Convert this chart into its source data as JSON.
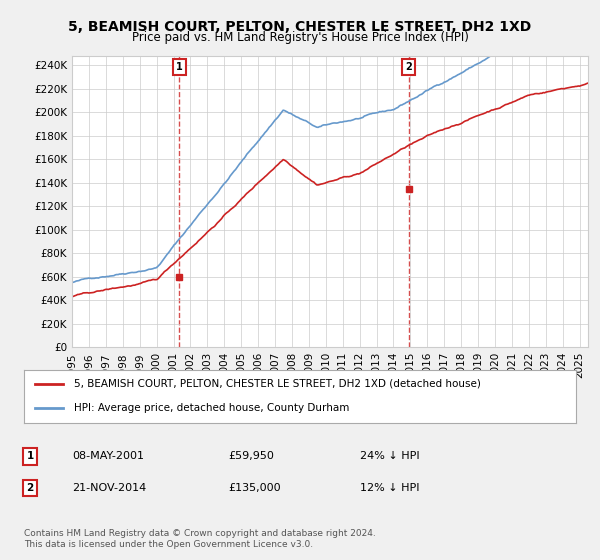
{
  "title": "5, BEAMISH COURT, PELTON, CHESTER LE STREET, DH2 1XD",
  "subtitle": "Price paid vs. HM Land Registry's House Price Index (HPI)",
  "ylabel_ticks": [
    "£0",
    "£20K",
    "£40K",
    "£60K",
    "£80K",
    "£100K",
    "£120K",
    "£140K",
    "£160K",
    "£180K",
    "£200K",
    "£220K",
    "£240K"
  ],
  "ytick_values": [
    0,
    20000,
    40000,
    60000,
    80000,
    100000,
    120000,
    140000,
    160000,
    180000,
    200000,
    220000,
    240000
  ],
  "ylim": [
    0,
    248000
  ],
  "hpi_color": "#6699cc",
  "price_color": "#cc2222",
  "marker1_year": 2001.35,
  "marker1_price": 59950,
  "marker2_year": 2014.9,
  "marker2_price": 135000,
  "legend_label1": "5, BEAMISH COURT, PELTON, CHESTER LE STREET, DH2 1XD (detached house)",
  "legend_label2": "HPI: Average price, detached house, County Durham",
  "table_row1": [
    "1",
    "08-MAY-2001",
    "£59,950",
    "24% ↓ HPI"
  ],
  "table_row2": [
    "2",
    "21-NOV-2014",
    "£135,000",
    "12% ↓ HPI"
  ],
  "footnote": "Contains HM Land Registry data © Crown copyright and database right 2024.\nThis data is licensed under the Open Government Licence v3.0.",
  "background_color": "#f0f0f0",
  "plot_bg_color": "#ffffff"
}
